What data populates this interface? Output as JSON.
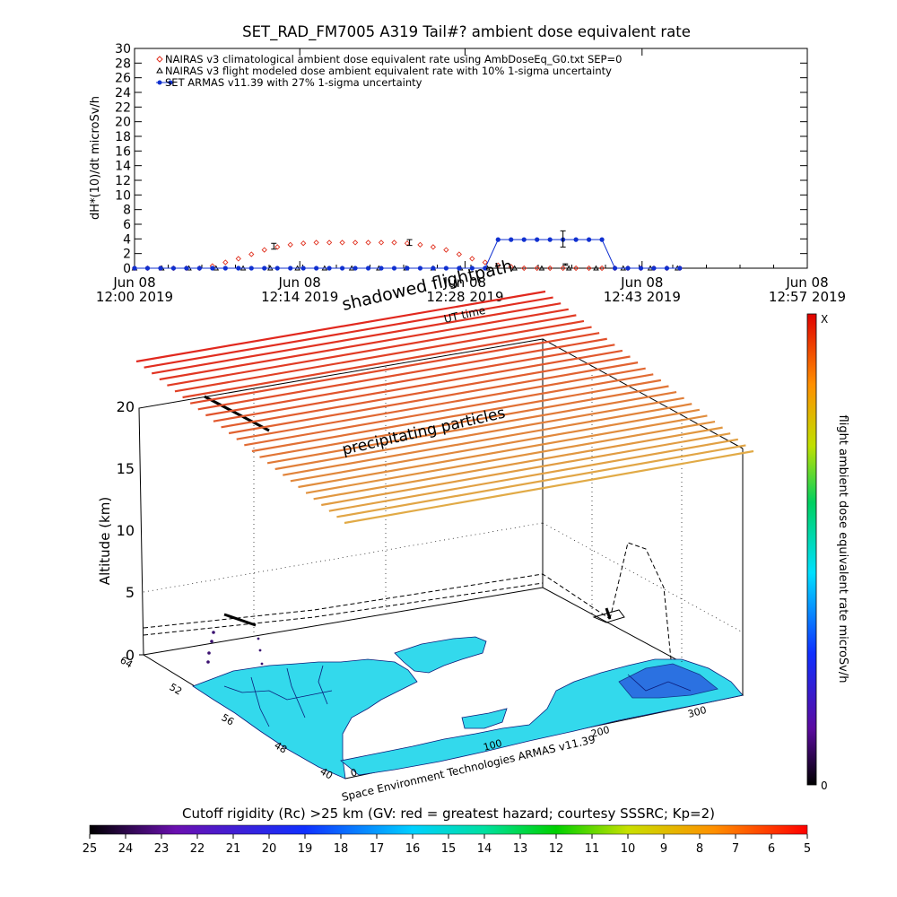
{
  "chart_data": [
    {
      "type": "scatter",
      "title": "SET_RAD_FM7005  A319 Tail#? ambient dose equivalent rate",
      "ylabel": "dH*(10)/dt microSv/h",
      "xlabel": "UT time",
      "ylim": [
        0,
        30
      ],
      "yticks": [
        0,
        2,
        4,
        6,
        8,
        10,
        12,
        14,
        16,
        18,
        20,
        22,
        24,
        26,
        28,
        30
      ],
      "xlim": [
        "12:00",
        "12:57"
      ],
      "xticks": [
        {
          "t": 0,
          "line1": "Jun 08",
          "line2": "12:00 2019"
        },
        {
          "t": 14,
          "line1": "Jun 08",
          "line2": "12:14 2019"
        },
        {
          "t": 28,
          "line1": "Jun 08",
          "line2": "12:28 2019"
        },
        {
          "t": 43,
          "line1": "Jun 08",
          "line2": "12:43 2019"
        },
        {
          "t": 57,
          "line1": "Jun 08",
          "line2": "12:57 2019"
        }
      ],
      "legend": [
        {
          "symbol": "diamond",
          "color": "#e0301e",
          "label": "NAIRAS v3 climatological ambient dose equivalent rate using AmbDoseEq_G0.txt SEP=0"
        },
        {
          "symbol": "triangle",
          "color": "#000000",
          "label": "NAIRAS v3 flight modeled dose ambient equivalent rate with 10% 1-sigma uncertainty"
        },
        {
          "symbol": "dot",
          "color": "#1030d0",
          "label": "SET ARMAS v11.39 with 27% 1-sigma uncertainty"
        }
      ],
      "series": [
        {
          "name": "NAIRAS v3 climatological ambient dose equivalent rate using AmbDoseEq_G0.txt SEP=0",
          "x": [
            0,
            1.1,
            2.2,
            3.3,
            4.4,
            5.5,
            6.6,
            7.7,
            8.8,
            9.9,
            11,
            12.1,
            13.2,
            14.3,
            15.4,
            16.5,
            17.6,
            18.7,
            19.8,
            20.9,
            22,
            23.1,
            24.2,
            25.3,
            26.4,
            27.5,
            28.6,
            29.7,
            30.8,
            31.9,
            33,
            34.1,
            35.2,
            36.3,
            37.4,
            38.5,
            39.6,
            40.7,
            41.8,
            42.9,
            44,
            45.1,
            46.2
          ],
          "y": [
            0,
            0,
            0,
            0,
            0,
            0,
            0.3,
            0.8,
            1.3,
            1.9,
            2.5,
            2.9,
            3.2,
            3.4,
            3.5,
            3.5,
            3.5,
            3.5,
            3.5,
            3.5,
            3.5,
            3.4,
            3.2,
            2.9,
            2.5,
            1.9,
            1.3,
            0.8,
            0.4,
            0.2,
            0,
            0,
            0,
            0,
            0,
            0,
            0,
            0,
            0,
            0,
            0,
            0,
            0
          ]
        },
        {
          "name": "NAIRAS v3 flight modeled dose ambient equivalent rate with 10% 1-sigma uncertainty",
          "x": [
            0,
            2.3,
            4.6,
            6.9,
            9.2,
            11.5,
            13.8,
            16.1,
            18.4,
            20.7,
            23,
            25.3,
            27.6,
            29.9,
            32.2,
            34.5,
            36.8,
            39.1,
            41.4,
            43.7,
            46
          ],
          "y": [
            0,
            0,
            0,
            0,
            0,
            0,
            0,
            0,
            0,
            0,
            0,
            0,
            0,
            0,
            0,
            0,
            0,
            0,
            0,
            0,
            0
          ],
          "error_bars": [
            {
              "x": 11.8,
              "y": 3.0,
              "err": 0.4
            },
            {
              "x": 23.3,
              "y": 3.5,
              "err": 0.4
            },
            {
              "x": 36.5,
              "y": 0.5,
              "err": 0.1
            }
          ]
        },
        {
          "name": "SET ARMAS v11.39 with 27% 1-sigma uncertainty",
          "x": [
            0,
            1.1,
            2.2,
            3.3,
            4.4,
            5.5,
            6.6,
            7.7,
            8.8,
            9.9,
            11,
            12.1,
            13.2,
            14.3,
            15.4,
            16.5,
            17.6,
            18.7,
            19.8,
            20.9,
            22,
            23.1,
            24.2,
            25.3,
            26.4,
            27.5,
            28.6,
            29.7,
            30.8,
            31.9,
            33,
            34.1,
            35.2,
            36.3,
            37.4,
            38.5,
            39.6,
            40.7,
            41.8,
            42.9,
            44,
            45.1,
            46.2
          ],
          "y": [
            0,
            0,
            0,
            0,
            0,
            0,
            0,
            0,
            0,
            0,
            0,
            0,
            0,
            0,
            0,
            0,
            0,
            0,
            0,
            0,
            0,
            0,
            0,
            0,
            0,
            0,
            0,
            0,
            3.9,
            3.9,
            3.9,
            3.9,
            3.9,
            3.9,
            3.9,
            3.9,
            3.9,
            0,
            0,
            0,
            0,
            0,
            0
          ],
          "error_bars": [
            {
              "x": 36.3,
              "y": 4.0,
              "err": 1.1
            }
          ]
        }
      ]
    },
    {
      "type": "3d-flight-track",
      "annotations": [
        "shadowed flightpath",
        "precipitating particles"
      ],
      "zlabel": "Altitude (km)",
      "zticks": [
        0,
        5,
        10,
        15,
        20
      ],
      "lat_ticks": [
        "40",
        "48",
        "56",
        "52",
        "64"
      ],
      "lon_ticks": [
        "0",
        "100",
        "200",
        "300"
      ],
      "footer": "Space Environment Technologies ARMAS v11.39",
      "colorbar": {
        "label": "flight ambient dose equivalent rate microSv/h",
        "top_label": "X",
        "bottom_label": "0"
      },
      "rigidity_bar": {
        "title": "Cutoff rigidity (Rc) >25 km (GV: red = greatest hazard; courtesy SSSRC; Kp=2)",
        "ticks": [
          "25",
          "24",
          "23",
          "22",
          "21",
          "20",
          "19",
          "18",
          "17",
          "16",
          "15",
          "14",
          "13",
          "12",
          "11",
          "10",
          "9",
          "8",
          "7",
          "6",
          "5"
        ]
      }
    }
  ]
}
